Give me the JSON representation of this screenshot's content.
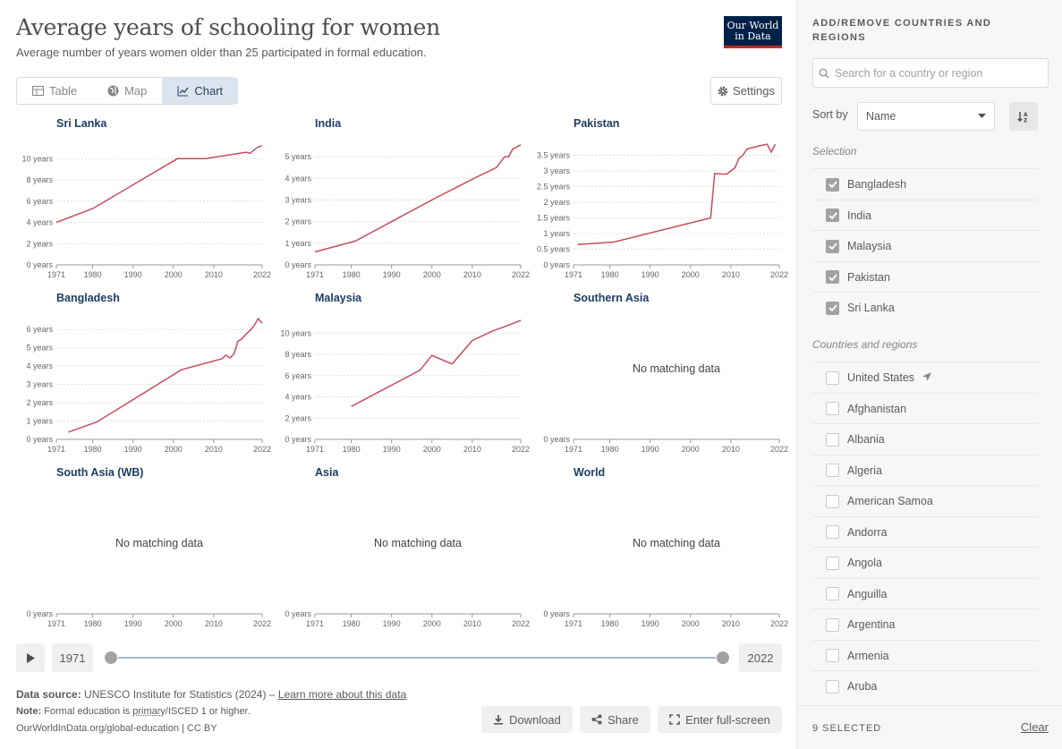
{
  "header": {
    "title": "Average years of schooling for women",
    "subtitle": "Average number of years women older than 25 participated in formal education.",
    "logo_line1": "Our World",
    "logo_line2": "in Data"
  },
  "tabs": [
    {
      "label": "Table",
      "icon": "table-icon"
    },
    {
      "label": "Map",
      "icon": "globe-icon"
    },
    {
      "label": "Chart",
      "icon": "line-chart-icon",
      "active": true
    }
  ],
  "settings_label": "Settings",
  "accent_color": "#c44e60",
  "tick_years": [
    "1971",
    "1980",
    "1990",
    "2000",
    "2010",
    "2022"
  ],
  "no_data_text": "No matching data",
  "chart_data": [
    {
      "type": "line",
      "title": "Sri Lanka",
      "unit": "years",
      "yticks": [
        0,
        2,
        4,
        6,
        8,
        10
      ],
      "ylim": [
        0,
        11.2
      ],
      "x": [
        1971,
        1980,
        2001,
        2008,
        2018,
        2019,
        2020,
        2021,
        2022
      ],
      "y": [
        4.0,
        5.3,
        10.0,
        10.0,
        10.6,
        10.5,
        10.8,
        11.1,
        11.2
      ]
    },
    {
      "type": "line",
      "title": "India",
      "unit": "years",
      "yticks": [
        0,
        1,
        2,
        3,
        4,
        5
      ],
      "ylim": [
        0,
        5.5
      ],
      "x": [
        1971,
        1981,
        1991,
        2001,
        2011,
        2016,
        2018,
        2019,
        2020,
        2021,
        2022
      ],
      "y": [
        0.6,
        1.1,
        2.1,
        3.1,
        4.05,
        4.5,
        5.0,
        5.0,
        5.35,
        5.45,
        5.55
      ]
    },
    {
      "type": "line",
      "title": "Pakistan",
      "unit": "years",
      "yticks": [
        0,
        0.5,
        1,
        1.5,
        2,
        2.5,
        3,
        3.5
      ],
      "ylim": [
        0,
        3.8
      ],
      "x": [
        1972,
        1981,
        2005,
        2006,
        2008,
        2009,
        2011,
        2012,
        2013,
        2014,
        2017,
        2019,
        2020,
        2021
      ],
      "y": [
        0.65,
        0.73,
        1.5,
        2.92,
        2.9,
        2.9,
        3.1,
        3.4,
        3.5,
        3.7,
        3.8,
        3.85,
        3.6,
        3.85
      ]
    },
    {
      "type": "line",
      "title": "Bangladesh",
      "unit": "years",
      "yticks": [
        0,
        1,
        2,
        3,
        4,
        5,
        6
      ],
      "ylim": [
        0,
        6.5
      ],
      "x": [
        1974,
        1981,
        2002,
        2012,
        2013,
        2014,
        2015,
        2016,
        2017,
        2018,
        2019,
        2020,
        2021,
        2022
      ],
      "y": [
        0.4,
        0.95,
        3.8,
        4.4,
        4.6,
        4.45,
        4.65,
        5.35,
        5.5,
        5.75,
        5.95,
        6.2,
        6.6,
        6.35
      ]
    },
    {
      "type": "line",
      "title": "Malaysia",
      "unit": "years",
      "yticks": [
        0,
        2,
        4,
        6,
        8,
        10
      ],
      "ylim": [
        0,
        11.2
      ],
      "x": [
        1980,
        1997,
        2000,
        2005,
        2010,
        2015,
        2018,
        2020,
        2022
      ],
      "y": [
        3.1,
        6.5,
        7.9,
        7.1,
        9.3,
        10.2,
        10.6,
        10.9,
        11.2
      ]
    },
    {
      "type": "line",
      "title": "Southern Asia",
      "unit": "years",
      "yticks": [
        0
      ],
      "no_data": true
    },
    {
      "type": "line",
      "title": "South Asia (WB)",
      "unit": "years",
      "yticks": [
        0
      ],
      "no_data": true
    },
    {
      "type": "line",
      "title": "Asia",
      "unit": "years",
      "yticks": [
        0
      ],
      "no_data": true
    },
    {
      "type": "line",
      "title": "World",
      "unit": "years",
      "yticks": [
        0
      ],
      "no_data": true
    }
  ],
  "timeline": {
    "start": "1971",
    "end": "2022"
  },
  "footer": {
    "source_label": "Data source:",
    "source_text": "UNESCO Institute for Statistics (2024) –",
    "source_link": "Learn more about this data",
    "note_label": "Note:",
    "note_text_1": "Formal education is",
    "note_dotted": "primary",
    "note_text_2": "/ISCED 1 or higher.",
    "credits": "OurWorldInData.org/global-education | CC BY"
  },
  "actions": {
    "download": "Download",
    "share": "Share",
    "fullscreen": "Enter full-screen"
  },
  "sidebar": {
    "title": "ADD/REMOVE COUNTRIES AND REGIONS",
    "search_placeholder": "Search for a country or region",
    "sort_label": "Sort by",
    "sort_value": "Name",
    "selection_label": "Selection",
    "selected": [
      "Bangladesh",
      "India",
      "Malaysia",
      "Pakistan",
      "Sri Lanka"
    ],
    "countries_label": "Countries and regions",
    "countries": [
      "United States",
      "Afghanistan",
      "Albania",
      "Algeria",
      "American Samoa",
      "Andorra",
      "Angola",
      "Anguilla",
      "Argentina",
      "Armenia",
      "Aruba"
    ],
    "selected_count": "9 SELECTED",
    "clear_label": "Clear"
  }
}
